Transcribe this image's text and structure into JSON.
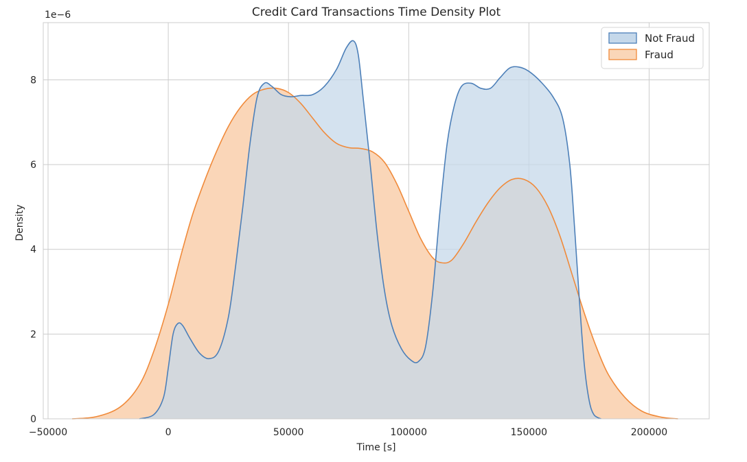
{
  "chart_data": {
    "type": "area",
    "title": "Credit Card Transactions Time Density Plot",
    "xlabel": "Time [s]",
    "ylabel": "Density",
    "y_offset_label": "1e−6",
    "xlim": [
      -52000,
      225000
    ],
    "ylim": [
      0,
      9.35
    ],
    "x_ticks": [
      -50000,
      0,
      50000,
      100000,
      150000,
      200000
    ],
    "x_tick_labels": [
      "−50000",
      "0",
      "50000",
      "100000",
      "150000",
      "200000"
    ],
    "y_ticks": [
      0,
      2,
      4,
      6,
      8
    ],
    "y_tick_labels": [
      "0",
      "2",
      "4",
      "6",
      "8"
    ],
    "grid": true,
    "legend_position": "top-right",
    "y_unit_scale": "1e-6",
    "series": [
      {
        "name": "Not Fraud",
        "color": "#4c7fb8",
        "fill": "#c5d8ea",
        "points": [
          [
            -12000,
            0.0
          ],
          [
            -6000,
            0.1
          ],
          [
            -2000,
            0.5
          ],
          [
            0,
            1.2
          ],
          [
            2000,
            2.0
          ],
          [
            4000,
            2.25
          ],
          [
            6000,
            2.2
          ],
          [
            9000,
            1.9
          ],
          [
            13000,
            1.55
          ],
          [
            17000,
            1.42
          ],
          [
            21000,
            1.6
          ],
          [
            25000,
            2.4
          ],
          [
            28000,
            3.6
          ],
          [
            31000,
            5.0
          ],
          [
            34000,
            6.5
          ],
          [
            37000,
            7.6
          ],
          [
            40000,
            7.92
          ],
          [
            43000,
            7.85
          ],
          [
            47000,
            7.65
          ],
          [
            51000,
            7.6
          ],
          [
            55000,
            7.63
          ],
          [
            60000,
            7.65
          ],
          [
            65000,
            7.85
          ],
          [
            70000,
            8.25
          ],
          [
            74000,
            8.75
          ],
          [
            77000,
            8.92
          ],
          [
            79000,
            8.6
          ],
          [
            81000,
            7.6
          ],
          [
            84000,
            6.0
          ],
          [
            87000,
            4.3
          ],
          [
            90000,
            3.0
          ],
          [
            93000,
            2.2
          ],
          [
            97000,
            1.65
          ],
          [
            101000,
            1.38
          ],
          [
            104000,
            1.35
          ],
          [
            107000,
            1.7
          ],
          [
            110000,
            3.0
          ],
          [
            113000,
            4.9
          ],
          [
            116000,
            6.5
          ],
          [
            119000,
            7.4
          ],
          [
            122000,
            7.85
          ],
          [
            126000,
            7.92
          ],
          [
            130000,
            7.8
          ],
          [
            134000,
            7.8
          ],
          [
            138000,
            8.05
          ],
          [
            142000,
            8.28
          ],
          [
            146000,
            8.3
          ],
          [
            150000,
            8.2
          ],
          [
            155000,
            7.95
          ],
          [
            160000,
            7.6
          ],
          [
            164000,
            7.1
          ],
          [
            167000,
            6.0
          ],
          [
            169000,
            4.5
          ],
          [
            171000,
            2.8
          ],
          [
            173000,
            1.3
          ],
          [
            175000,
            0.45
          ],
          [
            177000,
            0.1
          ],
          [
            180000,
            0.0
          ]
        ]
      },
      {
        "name": "Fraud",
        "color": "#f08a3a",
        "fill": "#fad6b8",
        "points": [
          [
            -40000,
            0.0
          ],
          [
            -30000,
            0.05
          ],
          [
            -20000,
            0.28
          ],
          [
            -12000,
            0.8
          ],
          [
            -6000,
            1.6
          ],
          [
            0,
            2.7
          ],
          [
            5000,
            3.8
          ],
          [
            10000,
            4.8
          ],
          [
            15000,
            5.6
          ],
          [
            20000,
            6.3
          ],
          [
            25000,
            6.9
          ],
          [
            30000,
            7.35
          ],
          [
            35000,
            7.65
          ],
          [
            40000,
            7.78
          ],
          [
            45000,
            7.8
          ],
          [
            50000,
            7.7
          ],
          [
            55000,
            7.45
          ],
          [
            60000,
            7.1
          ],
          [
            65000,
            6.75
          ],
          [
            70000,
            6.5
          ],
          [
            75000,
            6.4
          ],
          [
            80000,
            6.38
          ],
          [
            85000,
            6.3
          ],
          [
            90000,
            6.05
          ],
          [
            95000,
            5.55
          ],
          [
            100000,
            4.9
          ],
          [
            105000,
            4.25
          ],
          [
            110000,
            3.8
          ],
          [
            114000,
            3.68
          ],
          [
            118000,
            3.75
          ],
          [
            123000,
            4.15
          ],
          [
            128000,
            4.65
          ],
          [
            133000,
            5.1
          ],
          [
            138000,
            5.45
          ],
          [
            143000,
            5.65
          ],
          [
            148000,
            5.65
          ],
          [
            153000,
            5.45
          ],
          [
            158000,
            5.0
          ],
          [
            163000,
            4.3
          ],
          [
            168000,
            3.4
          ],
          [
            173000,
            2.5
          ],
          [
            178000,
            1.7
          ],
          [
            183000,
            1.05
          ],
          [
            190000,
            0.5
          ],
          [
            197000,
            0.18
          ],
          [
            205000,
            0.04
          ],
          [
            212000,
            0.0
          ]
        ]
      }
    ]
  }
}
